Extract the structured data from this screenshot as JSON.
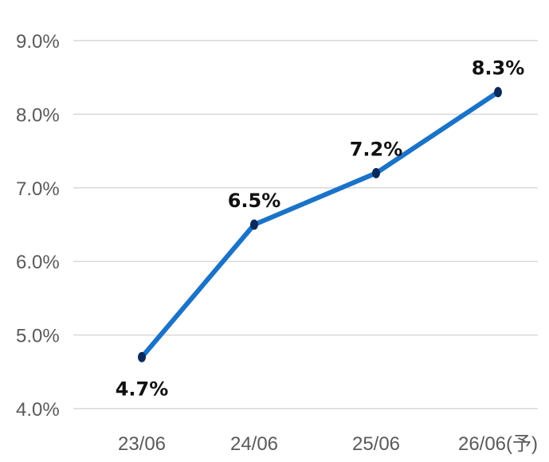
{
  "chart_data": {
    "type": "line",
    "title": "",
    "categories": [
      "23/06",
      "24/06",
      "25/06",
      "26/06(予)"
    ],
    "series": [
      {
        "values": [
          4.7,
          6.5,
          7.2,
          8.3
        ]
      }
    ],
    "data_labels": [
      "4.7%",
      "6.5%",
      "7.2%",
      "8.3%"
    ],
    "y_ticks": [
      "4.0%",
      "5.0%",
      "6.0%",
      "7.0%",
      "8.0%",
      "9.0%"
    ],
    "ylim": [
      4.0,
      9.0
    ],
    "grid": true,
    "xlabel": "",
    "ylabel": "",
    "colors": {
      "line": "#1a73c8",
      "marker": "#0b2a5c",
      "grid": "#d9d9d9"
    }
  }
}
